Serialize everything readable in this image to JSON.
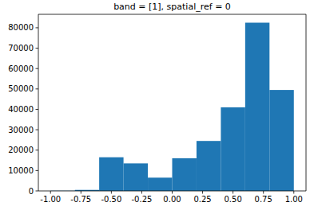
{
  "chart_data": {
    "type": "histogram",
    "title": "band = [1], spatial_ref = 0",
    "bins": [
      -1.0,
      -0.8,
      -0.6,
      -0.4,
      -0.2,
      0.0,
      0.2,
      0.4,
      0.6,
      0.8,
      1.0
    ],
    "values": [
      100,
      500,
      16500,
      13500,
      6500,
      16000,
      24500,
      41000,
      82500,
      49500
    ],
    "color": "#1f77b4",
    "xlim": [
      -1.1,
      1.1
    ],
    "xticks": [
      {
        "value": -1.0,
        "label": "-1.00"
      },
      {
        "value": -0.75,
        "label": "-0.75"
      },
      {
        "value": -0.5,
        "label": "-0.50"
      },
      {
        "value": -0.25,
        "label": "-0.25"
      },
      {
        "value": 0.0,
        "label": "0.00"
      },
      {
        "value": 0.25,
        "label": "0.25"
      },
      {
        "value": 0.5,
        "label": "0.50"
      },
      {
        "value": 0.75,
        "label": "0.75"
      },
      {
        "value": 1.0,
        "label": "1.00"
      }
    ],
    "ylim": [
      0,
      86600
    ],
    "yticks": [
      0,
      10000,
      20000,
      30000,
      40000,
      50000,
      60000,
      70000,
      80000
    ],
    "grid": false
  }
}
